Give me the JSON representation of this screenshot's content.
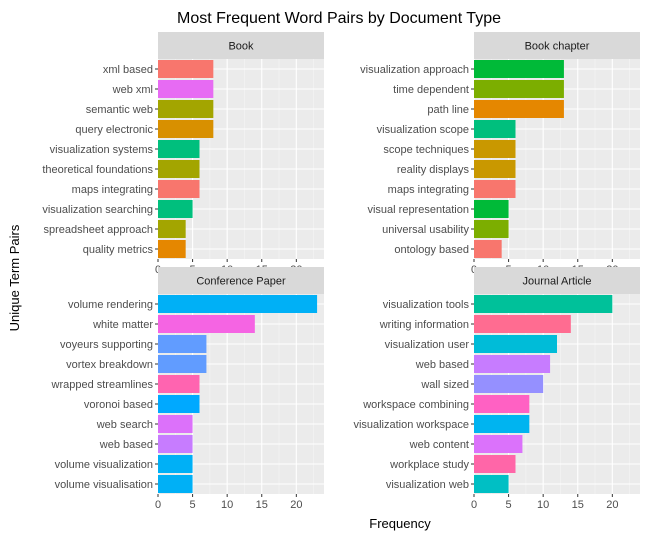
{
  "chart_data": {
    "type": "bar",
    "orientation": "horizontal",
    "title": "Most Frequent Word Pairs by Document Type",
    "xlabel": "Frequency",
    "ylabel": "Unique Term Pairs",
    "xlim": [
      0,
      24
    ],
    "xticks": [
      0,
      5,
      10,
      15,
      20
    ],
    "grid": true,
    "legend": "none",
    "panels": [
      {
        "name": "Book",
        "bars": [
          {
            "label": "xml based",
            "value": 8,
            "color": "#F8766D"
          },
          {
            "label": "web xml",
            "value": 8,
            "color": "#E76BF3"
          },
          {
            "label": "semantic web",
            "value": 8,
            "color": "#A3A500"
          },
          {
            "label": "query electronic",
            "value": 8,
            "color": "#D89000"
          },
          {
            "label": "visualization systems",
            "value": 6,
            "color": "#00BF7D"
          },
          {
            "label": "theoretical foundations",
            "value": 6,
            "color": "#A3A500"
          },
          {
            "label": "maps integrating",
            "value": 6,
            "color": "#F8766D"
          },
          {
            "label": "visualization searching",
            "value": 5,
            "color": "#00BF7D"
          },
          {
            "label": "spreadsheet approach",
            "value": 4,
            "color": "#A3A500"
          },
          {
            "label": "quality metrics",
            "value": 4,
            "color": "#E58700"
          }
        ]
      },
      {
        "name": "Book chapter",
        "bars": [
          {
            "label": "visualization approach",
            "value": 13,
            "color": "#00BA38"
          },
          {
            "label": "time dependent",
            "value": 13,
            "color": "#7CAE00"
          },
          {
            "label": "path line",
            "value": 13,
            "color": "#E58700"
          },
          {
            "label": "visualization scope",
            "value": 6,
            "color": "#00BF7D"
          },
          {
            "label": "scope techniques",
            "value": 6,
            "color": "#C99800"
          },
          {
            "label": "reality displays",
            "value": 6,
            "color": "#C99800"
          },
          {
            "label": "maps integrating",
            "value": 6,
            "color": "#F8766D"
          },
          {
            "label": "visual representation",
            "value": 5,
            "color": "#00BA38"
          },
          {
            "label": "universal usability",
            "value": 5,
            "color": "#7CAE00"
          },
          {
            "label": "ontology based",
            "value": 4,
            "color": "#F8766D"
          }
        ]
      },
      {
        "name": "Conference Paper",
        "bars": [
          {
            "label": "volume rendering",
            "value": 23,
            "color": "#00B0F6"
          },
          {
            "label": "white matter",
            "value": 14,
            "color": "#F564E3"
          },
          {
            "label": "voyeurs supporting",
            "value": 7,
            "color": "#619CFF"
          },
          {
            "label": "vortex breakdown",
            "value": 7,
            "color": "#619CFF"
          },
          {
            "label": "wrapped streamlines",
            "value": 6,
            "color": "#FF64B0"
          },
          {
            "label": "voronoi based",
            "value": 6,
            "color": "#00A9FF"
          },
          {
            "label": "web search",
            "value": 5,
            "color": "#DC71FA"
          },
          {
            "label": "web based",
            "value": 5,
            "color": "#C77CFF"
          },
          {
            "label": "volume visualization",
            "value": 5,
            "color": "#00B0F6"
          },
          {
            "label": "volume visualisation",
            "value": 5,
            "color": "#00B0F6"
          }
        ]
      },
      {
        "name": "Journal Article",
        "bars": [
          {
            "label": "visualization tools",
            "value": 20,
            "color": "#00C19A"
          },
          {
            "label": "writing information",
            "value": 14,
            "color": "#FF6C91"
          },
          {
            "label": "visualization user",
            "value": 12,
            "color": "#00BCD8"
          },
          {
            "label": "web based",
            "value": 11,
            "color": "#C77CFF"
          },
          {
            "label": "wall sized",
            "value": 10,
            "color": "#9590FF"
          },
          {
            "label": "workspace combining",
            "value": 8,
            "color": "#FF61C3"
          },
          {
            "label": "visualization workspace",
            "value": 8,
            "color": "#00B4F0"
          },
          {
            "label": "web content",
            "value": 7,
            "color": "#DB72FB"
          },
          {
            "label": "workplace study",
            "value": 6,
            "color": "#FF66A8"
          },
          {
            "label": "visualization web",
            "value": 5,
            "color": "#00BFC4"
          }
        ]
      }
    ],
    "colors": {
      "panel_background": "#EBEBEB",
      "strip_background": "#D9D9D9",
      "grid_major": "#FFFFFF"
    }
  }
}
